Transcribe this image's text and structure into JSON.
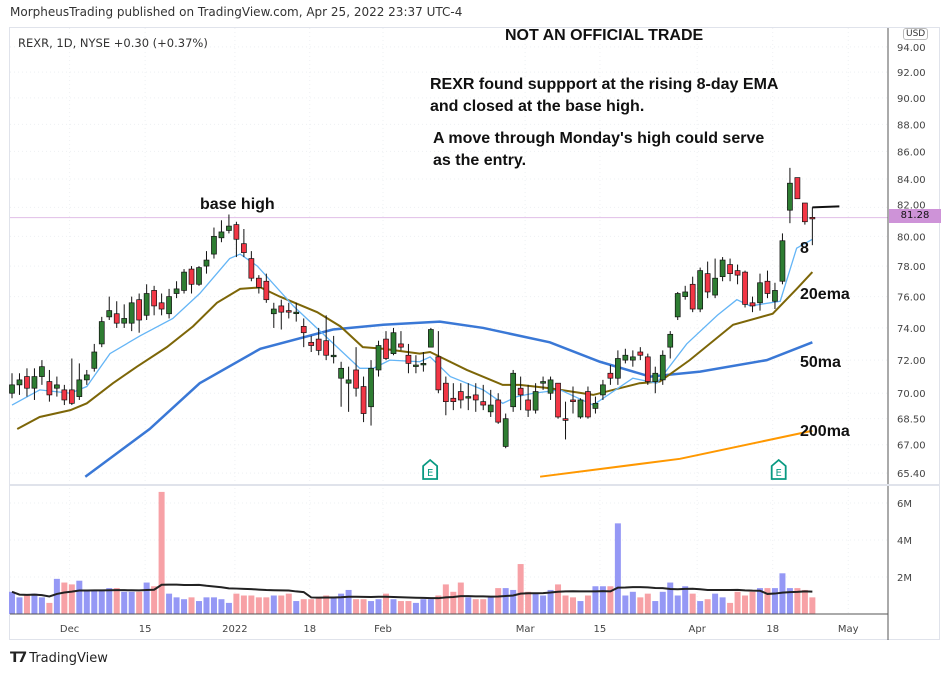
{
  "header": {
    "published": "MorpheusTrading published on TradingView.com, Apr 25, 2022 23:37 UTC-4",
    "legend": "REXR, 1D, NYSE  +0.30 (+0.37%)",
    "currency": "USD"
  },
  "annotations": {
    "title": "NOT AN OFFICIAL TRADE",
    "note1_line1": "REXR found suppport at the rising 8-day EMA",
    "note1_line2": "and closed at the base high.",
    "note2_line1": "A move through Monday's high could serve",
    "note2_line2": "as the entry.",
    "base_high": "base high",
    "ema8_label": "8",
    "ema20_label": "20ema",
    "ma50_label": "50ma",
    "ma200_label": "200ma"
  },
  "footer": {
    "brand": "TradingView"
  },
  "chart_data": {
    "type": "candlestick",
    "symbol": "REXR",
    "interval": "1D",
    "exchange": "NYSE",
    "price_scale": "log",
    "last_price": 81.28,
    "last_price_label": "81.28",
    "monday_high_line": 82.0,
    "colors": {
      "up": "#2e7d32",
      "down": "#f23645",
      "ema8": "#64b5f6",
      "ema20": "#7d6608",
      "ma50": "#3a78d6",
      "ma200": "#ff9800",
      "base_line": "#e1bee7",
      "vol_up": "#9598f5",
      "vol_down": "#f7a1a6",
      "earnings": "#089981"
    },
    "y_ticks": [
      "94.00",
      "92.00",
      "90.00",
      "88.00",
      "86.00",
      "84.00",
      "82.00",
      "80.00",
      "78.00",
      "76.00",
      "74.00",
      "72.00",
      "70.00",
      "68.50",
      "67.00",
      "65.40"
    ],
    "vol_ticks": [
      {
        "v": 6,
        "label": "6M"
      },
      {
        "v": 4,
        "label": "4M"
      },
      {
        "v": 2,
        "label": "2M"
      }
    ],
    "x_ticks": [
      {
        "label": "Dec",
        "session": 7.7
      },
      {
        "label": "15",
        "session": 17.8
      },
      {
        "label": "2022",
        "session": 29.8
      },
      {
        "label": "18",
        "session": 39.8
      },
      {
        "label": "Feb",
        "session": 49.6
      },
      {
        "label": "Mar",
        "session": 68.6
      },
      {
        "label": "15",
        "session": 78.6
      },
      {
        "label": "Apr",
        "session": 91.6
      },
      {
        "label": "18",
        "session": 101.7
      },
      {
        "label": "May",
        "session": 111.8
      }
    ],
    "ohlc": [
      [
        70.0,
        71.2,
        69.7,
        70.5
      ],
      [
        70.5,
        71.2,
        69.9,
        70.8
      ],
      [
        71.0,
        71.5,
        69.8,
        70.3
      ],
      [
        70.3,
        71.5,
        69.6,
        71.0
      ],
      [
        71.0,
        72.0,
        70.5,
        71.6
      ],
      [
        70.7,
        71.4,
        69.5,
        69.9
      ],
      [
        70.3,
        71.0,
        69.8,
        70.5
      ],
      [
        70.2,
        70.5,
        69.3,
        69.6
      ],
      [
        70.2,
        72.1,
        69.3,
        69.4
      ],
      [
        69.8,
        71.8,
        69.6,
        70.8
      ],
      [
        70.8,
        71.4,
        70.5,
        71.1
      ],
      [
        71.5,
        73.0,
        71.3,
        72.5
      ],
      [
        73.0,
        74.7,
        72.8,
        74.4
      ],
      [
        74.7,
        76.0,
        74.5,
        75.1
      ],
      [
        74.9,
        75.7,
        74.0,
        74.3
      ],
      [
        74.3,
        75.5,
        74.0,
        74.6
      ],
      [
        74.3,
        76.0,
        73.8,
        75.6
      ],
      [
        75.8,
        76.2,
        73.7,
        74.5
      ],
      [
        74.8,
        76.8,
        74.5,
        76.2
      ],
      [
        76.4,
        76.7,
        74.8,
        75.4
      ],
      [
        75.6,
        76.2,
        74.8,
        75.2
      ],
      [
        74.9,
        76.5,
        74.6,
        76.0
      ],
      [
        76.2,
        77.0,
        75.9,
        76.5
      ],
      [
        76.4,
        77.8,
        76.2,
        77.6
      ],
      [
        77.8,
        78.0,
        76.2,
        76.8
      ],
      [
        76.8,
        78.0,
        76.7,
        77.9
      ],
      [
        78.0,
        79.0,
        77.5,
        78.4
      ],
      [
        78.8,
        80.6,
        78.5,
        80.0
      ],
      [
        79.9,
        81.1,
        79.6,
        80.3
      ],
      [
        80.4,
        81.5,
        80.2,
        80.7
      ],
      [
        80.8,
        81.0,
        78.6,
        79.8
      ],
      [
        79.5,
        80.5,
        78.6,
        78.9
      ],
      [
        78.5,
        79.0,
        77.0,
        77.2
      ],
      [
        77.2,
        77.4,
        76.2,
        76.6
      ],
      [
        77.0,
        77.5,
        75.6,
        75.8
      ],
      [
        74.9,
        75.6,
        74.0,
        75.2
      ],
      [
        75.4,
        75.8,
        73.9,
        75.0
      ],
      [
        75.1,
        75.6,
        74.6,
        75.0
      ],
      [
        75.0,
        75.6,
        74.4,
        75.0
      ],
      [
        74.1,
        74.6,
        72.8,
        73.7
      ],
      [
        73.1,
        73.5,
        72.5,
        72.9
      ],
      [
        73.3,
        74.0,
        72.3,
        72.6
      ],
      [
        73.2,
        74.8,
        72.0,
        72.3
      ],
      [
        72.3,
        73.5,
        71.8,
        72.3
      ],
      [
        70.9,
        71.9,
        69.2,
        71.5
      ],
      [
        70.6,
        71.6,
        68.9,
        70.8
      ],
      [
        71.4,
        72.8,
        69.8,
        70.3
      ],
      [
        70.4,
        71.0,
        68.3,
        68.8
      ],
      [
        69.2,
        72.0,
        68.1,
        71.5
      ],
      [
        71.4,
        73.2,
        71.0,
        72.9
      ],
      [
        73.3,
        73.8,
        72.0,
        72.1
      ],
      [
        72.4,
        74.0,
        72.3,
        73.7
      ],
      [
        73.0,
        73.8,
        72.6,
        72.8
      ],
      [
        72.3,
        73.0,
        71.2,
        71.8
      ],
      [
        71.7,
        72.3,
        71.2,
        71.7
      ],
      [
        71.8,
        72.5,
        71.3,
        71.8
      ],
      [
        72.8,
        74.0,
        72.8,
        73.9
      ],
      [
        72.2,
        73.8,
        70.0,
        70.2
      ],
      [
        70.6,
        71.0,
        68.7,
        69.5
      ],
      [
        69.7,
        70.6,
        69.0,
        69.5
      ],
      [
        70.1,
        70.6,
        69.1,
        69.6
      ],
      [
        69.8,
        70.6,
        69.0,
        69.8
      ],
      [
        69.9,
        70.6,
        68.9,
        69.6
      ],
      [
        69.5,
        70.5,
        69.0,
        69.3
      ],
      [
        68.9,
        70.2,
        68.6,
        69.3
      ],
      [
        69.6,
        70.0,
        68.2,
        68.3
      ],
      [
        66.9,
        68.8,
        66.8,
        68.5
      ],
      [
        69.2,
        71.4,
        68.9,
        71.2
      ],
      [
        70.3,
        71.0,
        69.0,
        69.9
      ],
      [
        69.6,
        70.5,
        68.6,
        69.0
      ],
      [
        69.0,
        70.6,
        68.8,
        70.1
      ],
      [
        70.6,
        71.0,
        70.2,
        70.7
      ],
      [
        70.0,
        71.0,
        69.6,
        70.8
      ],
      [
        70.6,
        70.6,
        68.5,
        68.6
      ],
      [
        68.5,
        69.5,
        67.3,
        68.4
      ],
      [
        69.6,
        70.4,
        68.8,
        69.5
      ],
      [
        68.6,
        69.7,
        68.5,
        69.6
      ],
      [
        70.1,
        70.4,
        68.5,
        68.6
      ],
      [
        69.1,
        69.8,
        68.8,
        69.4
      ],
      [
        69.9,
        70.8,
        69.6,
        70.5
      ],
      [
        71.2,
        71.7,
        70.5,
        70.9
      ],
      [
        70.9,
        72.6,
        70.5,
        72.1
      ],
      [
        72.0,
        72.7,
        71.8,
        72.3
      ],
      [
        72.0,
        72.6,
        71.6,
        72.2
      ],
      [
        72.5,
        72.8,
        72.0,
        72.3
      ],
      [
        72.2,
        72.4,
        70.5,
        70.7
      ],
      [
        70.7,
        71.6,
        70.0,
        71.2
      ],
      [
        70.8,
        72.6,
        70.5,
        72.3
      ],
      [
        72.8,
        73.8,
        72.1,
        73.6
      ],
      [
        74.7,
        76.3,
        74.5,
        76.2
      ],
      [
        76.0,
        76.7,
        75.8,
        76.3
      ],
      [
        76.8,
        77.3,
        75.0,
        75.2
      ],
      [
        75.2,
        77.9,
        75.0,
        77.7
      ],
      [
        77.5,
        78.3,
        75.9,
        76.3
      ],
      [
        76.1,
        78.5,
        75.9,
        77.2
      ],
      [
        77.3,
        78.6,
        77.0,
        78.4
      ],
      [
        78.1,
        78.5,
        77.0,
        77.5
      ],
      [
        77.7,
        78.1,
        76.8,
        77.4
      ],
      [
        77.6,
        77.7,
        75.3,
        75.5
      ],
      [
        75.6,
        76.0,
        75.0,
        75.4
      ],
      [
        75.6,
        77.5,
        75.1,
        76.9
      ],
      [
        77.0,
        77.7,
        75.9,
        76.2
      ],
      [
        75.7,
        76.9,
        75.2,
        76.4
      ],
      [
        77.0,
        80.2,
        76.8,
        79.7
      ],
      [
        81.8,
        84.8,
        80.9,
        83.7
      ],
      [
        84.1,
        84.1,
        82.6,
        82.6
      ],
      [
        82.3,
        82.3,
        80.8,
        81.0
      ],
      [
        81.3,
        82.0,
        79.4,
        81.28
      ]
    ],
    "volume_millions": [
      1.2,
      0.9,
      1.0,
      1.1,
      0.9,
      0.6,
      1.9,
      1.7,
      1.6,
      1.8,
      1.3,
      1.3,
      1.3,
      1.4,
      1.4,
      1.2,
      1.2,
      1.2,
      1.7,
      1.5,
      6.6,
      1.1,
      0.9,
      0.8,
      0.9,
      0.7,
      0.9,
      0.9,
      0.8,
      0.6,
      1.1,
      1.0,
      1.0,
      0.9,
      0.9,
      1.0,
      1.0,
      1.1,
      0.7,
      0.8,
      0.8,
      0.9,
      1.0,
      0.9,
      1.1,
      1.3,
      0.8,
      0.8,
      0.7,
      0.8,
      1.1,
      0.8,
      0.7,
      0.7,
      0.6,
      0.8,
      0.8,
      1.0,
      1.6,
      1.2,
      1.7,
      0.9,
      0.8,
      0.8,
      0.9,
      1.4,
      1.4,
      1.3,
      2.7,
      1.2,
      1.1,
      1.0,
      1.3,
      1.6,
      1.0,
      0.9,
      0.7,
      1.0,
      1.5,
      1.5,
      1.5,
      4.9,
      1.0,
      1.2,
      0.9,
      1.1,
      0.7,
      1.2,
      1.7,
      1.0,
      1.5,
      1.1,
      0.7,
      0.8,
      1.1,
      0.9,
      0.6,
      1.2,
      1.0,
      1.2,
      1.4,
      1.4,
      1.4,
      2.2,
      1.4,
      1.4,
      1.3,
      0.9
    ],
    "ema8": [
      [
        0,
        69.3
      ],
      [
        3.7,
        70.2
      ],
      [
        7.8,
        70.0
      ],
      [
        10,
        70.4
      ],
      [
        13.1,
        72.4
      ],
      [
        17.1,
        73.5
      ],
      [
        21.5,
        74.6
      ],
      [
        25.1,
        76.2
      ],
      [
        29.1,
        78.5
      ],
      [
        30.5,
        78.8
      ],
      [
        32.8,
        78.0
      ],
      [
        37.6,
        75.4
      ],
      [
        42.1,
        73.4
      ],
      [
        46.5,
        71.5
      ],
      [
        48.3,
        71.5
      ],
      [
        50.5,
        72.0
      ],
      [
        54.5,
        71.9
      ],
      [
        55.9,
        72.2
      ],
      [
        58.6,
        71.0
      ],
      [
        63,
        70.2
      ],
      [
        65.6,
        69.4
      ],
      [
        67.5,
        69.8
      ],
      [
        69.7,
        70.0
      ],
      [
        73.3,
        70.2
      ],
      [
        77.7,
        69.3
      ],
      [
        83,
        70.9
      ],
      [
        86.2,
        70.6
      ],
      [
        90.2,
        73.0
      ],
      [
        94.3,
        74.8
      ],
      [
        96.9,
        75.8
      ],
      [
        98.7,
        75.4
      ],
      [
        102.7,
        75.7
      ],
      [
        104.9,
        79.2
      ],
      [
        107,
        79.8
      ]
    ],
    "ema20": [
      [
        0.7,
        67.9
      ],
      [
        3.7,
        68.6
      ],
      [
        7.8,
        69.0
      ],
      [
        10,
        69.4
      ],
      [
        13.5,
        70.6
      ],
      [
        16.7,
        71.6
      ],
      [
        20.7,
        72.8
      ],
      [
        24.2,
        74.1
      ],
      [
        27.4,
        75.6
      ],
      [
        30.5,
        76.5
      ],
      [
        33.2,
        76.6
      ],
      [
        35.8,
        76.0
      ],
      [
        40.8,
        75.0
      ],
      [
        43.9,
        74.1
      ],
      [
        46.9,
        72.8
      ],
      [
        49.6,
        72.7
      ],
      [
        54.5,
        72.4
      ],
      [
        55.9,
        72.5
      ],
      [
        60.8,
        71.4
      ],
      [
        65.6,
        70.5
      ],
      [
        67.9,
        70.5
      ],
      [
        71.9,
        70.3
      ],
      [
        77.7,
        69.9
      ],
      [
        83.9,
        70.6
      ],
      [
        86.6,
        70.7
      ],
      [
        90.6,
        72.0
      ],
      [
        96.4,
        74.2
      ],
      [
        101.7,
        74.9
      ],
      [
        104.9,
        76.5
      ],
      [
        107,
        77.6
      ]
    ],
    "ma50": [
      [
        9.8,
        65.2
      ],
      [
        18.4,
        67.9
      ],
      [
        25.1,
        70.6
      ],
      [
        33.2,
        72.7
      ],
      [
        42.9,
        73.9
      ],
      [
        49.6,
        74.2
      ],
      [
        57.2,
        74.4
      ],
      [
        63,
        74.0
      ],
      [
        67.9,
        73.5
      ],
      [
        71.9,
        73.1
      ],
      [
        78.6,
        71.9
      ],
      [
        85.3,
        71.0
      ],
      [
        92,
        71.3
      ],
      [
        100.9,
        72.0
      ],
      [
        107,
        73.1
      ]
    ],
    "ma200": [
      [
        70.6,
        65.2
      ],
      [
        89.3,
        66.2
      ],
      [
        107,
        67.8
      ]
    ],
    "earnings_sessions": [
      55.9,
      102.5
    ]
  }
}
